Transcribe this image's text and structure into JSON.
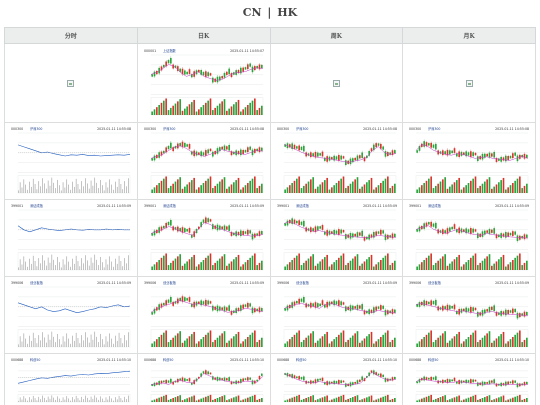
{
  "header": {
    "cn_label": "CN",
    "separator": "|",
    "hk_label": "HK"
  },
  "table": {
    "columns": [
      "分时",
      "日K",
      "周K",
      "月K"
    ]
  },
  "rows": [
    {
      "intraday": {
        "code": "",
        "name": "",
        "broken": true
      },
      "daily": {
        "code": "000001",
        "name": "上证指数",
        "stamp": "2025-01-11 14:55:07",
        "broken": false,
        "trend": [
          0.55,
          0.6,
          0.7,
          0.8,
          0.75,
          0.6,
          0.5,
          0.55,
          0.62,
          0.5,
          0.45,
          0.4,
          0.42,
          0.5,
          0.58,
          0.6,
          0.62,
          0.68,
          0.72,
          0.7
        ]
      },
      "weekly": {
        "broken": true
      },
      "monthly": {
        "broken": true
      }
    },
    {
      "intraday": {
        "code": "000300",
        "name": "沪深300",
        "stamp": "2025-01-11 14:55:08",
        "broken": false,
        "trend": [
          0.7,
          0.65,
          0.6,
          0.55,
          0.5,
          0.52,
          0.48,
          0.45,
          0.42,
          0.45,
          0.44,
          0.46,
          0.43,
          0.44,
          0.42,
          0.43,
          0.44,
          0.45,
          0.44,
          0.46
        ]
      },
      "daily": {
        "code": "000300",
        "name": "沪深300",
        "stamp": "2025-01-11 14:55:08",
        "broken": false,
        "trend": [
          0.4,
          0.45,
          0.5,
          0.6,
          0.68,
          0.72,
          0.65,
          0.55,
          0.5,
          0.45,
          0.5,
          0.55,
          0.62,
          0.58,
          0.55,
          0.52,
          0.5,
          0.55,
          0.6,
          0.58
        ]
      },
      "weekly": {
        "code": "000300",
        "name": "沪深300",
        "stamp": "2025-01-11 14:55:08",
        "broken": false,
        "trend": [
          0.75,
          0.7,
          0.62,
          0.55,
          0.5,
          0.45,
          0.42,
          0.4,
          0.38,
          0.35,
          0.32,
          0.3,
          0.33,
          0.36,
          0.42,
          0.6,
          0.7,
          0.55,
          0.5,
          0.52
        ]
      },
      "monthly": {
        "code": "000300",
        "name": "沪深300",
        "stamp": "2025-01-11 14:55:08",
        "broken": false,
        "trend": [
          0.6,
          0.75,
          0.7,
          0.6,
          0.55,
          0.5,
          0.48,
          0.52,
          0.5,
          0.45,
          0.4,
          0.42,
          0.44,
          0.4,
          0.38,
          0.36,
          0.35,
          0.4,
          0.45,
          0.4
        ]
      }
    },
    {
      "intraday": {
        "code": "399001",
        "name": "深证成指",
        "stamp": "2025-01-11 14:55:09",
        "broken": false,
        "trend": [
          0.6,
          0.5,
          0.45,
          0.5,
          0.55,
          0.52,
          0.5,
          0.48,
          0.5,
          0.52,
          0.5,
          0.49,
          0.51,
          0.5,
          0.5,
          0.52,
          0.5,
          0.51,
          0.5,
          0.5
        ]
      },
      "daily": {
        "code": "399001",
        "name": "深证成指",
        "stamp": "2025-01-11 14:55:09",
        "broken": false,
        "trend": [
          0.45,
          0.5,
          0.55,
          0.62,
          0.58,
          0.5,
          0.45,
          0.4,
          0.55,
          0.72,
          0.68,
          0.6,
          0.55,
          0.5,
          0.45,
          0.42,
          0.4,
          0.38,
          0.4,
          0.42
        ]
      },
      "weekly": {
        "code": "399001",
        "name": "深证成指",
        "stamp": "2025-01-11 14:55:09",
        "broken": false,
        "trend": [
          0.7,
          0.75,
          0.68,
          0.6,
          0.55,
          0.5,
          0.52,
          0.48,
          0.45,
          0.42,
          0.4,
          0.38,
          0.36,
          0.35,
          0.34,
          0.36,
          0.4,
          0.38,
          0.36,
          0.35
        ]
      },
      "monthly": {
        "code": "399001",
        "name": "深证成指",
        "stamp": "2025-01-11 14:55:09",
        "broken": false,
        "trend": [
          0.55,
          0.6,
          0.65,
          0.55,
          0.5,
          0.45,
          0.5,
          0.55,
          0.5,
          0.45,
          0.42,
          0.4,
          0.45,
          0.42,
          0.4,
          0.38,
          0.36,
          0.35,
          0.34,
          0.33
        ]
      }
    },
    {
      "intraday": {
        "code": "399006",
        "name": "创业板指",
        "stamp": "2025-01-11 14:55:09",
        "broken": false,
        "trend": [
          0.6,
          0.55,
          0.5,
          0.45,
          0.5,
          0.42,
          0.38,
          0.4,
          0.45,
          0.4,
          0.35,
          0.38,
          0.42,
          0.45,
          0.5,
          0.48,
          0.52,
          0.55,
          0.5,
          0.52
        ]
      },
      "daily": {
        "code": "399006",
        "name": "创业板指",
        "stamp": "2025-01-11 14:55:09",
        "broken": false,
        "trend": [
          0.4,
          0.5,
          0.55,
          0.6,
          0.65,
          0.7,
          0.65,
          0.6,
          0.62,
          0.58,
          0.55,
          0.5,
          0.45,
          0.4,
          0.42,
          0.45,
          0.5,
          0.48,
          0.45,
          0.42
        ]
      },
      "weekly": {
        "code": "399006",
        "name": "创业板指",
        "stamp": "2025-01-11 14:55:09",
        "broken": false,
        "trend": [
          0.5,
          0.55,
          0.6,
          0.62,
          0.58,
          0.55,
          0.5,
          0.6,
          0.62,
          0.58,
          0.52,
          0.5,
          0.48,
          0.45,
          0.42,
          0.4,
          0.45,
          0.42,
          0.4,
          0.38
        ]
      },
      "monthly": {
        "code": "399006",
        "name": "创业板指",
        "stamp": "2025-01-11 14:55:09",
        "broken": false,
        "trend": [
          0.6,
          0.62,
          0.58,
          0.55,
          0.5,
          0.48,
          0.45,
          0.42,
          0.44,
          0.4,
          0.38,
          0.36,
          0.4,
          0.42,
          0.38,
          0.36,
          0.35,
          0.34,
          0.33,
          0.32
        ]
      }
    },
    {
      "intraday": {
        "code": "000688",
        "name": "科创50",
        "stamp": "2025-01-11 14:55:10",
        "broken": false,
        "trend": [
          0.3,
          0.35,
          0.4,
          0.45,
          0.5,
          0.48,
          0.52,
          0.55,
          0.58,
          0.56,
          0.6,
          0.62,
          0.6,
          0.64,
          0.66,
          0.65,
          0.68,
          0.7,
          0.72,
          0.74
        ]
      },
      "daily": {
        "code": "000688",
        "name": "科创50",
        "stamp": "2025-01-11 14:55:10",
        "broken": false,
        "trend": [
          0.3,
          0.32,
          0.35,
          0.3,
          0.4,
          0.45,
          0.38,
          0.35,
          0.5,
          0.7,
          0.6,
          0.5,
          0.45,
          0.4,
          0.38,
          0.36,
          0.42,
          0.4,
          0.38,
          0.6
        ]
      },
      "weekly": {
        "code": "000688",
        "name": "科创50",
        "stamp": "2025-01-11 14:55:10",
        "broken": false,
        "trend": [
          0.7,
          0.6,
          0.5,
          0.42,
          0.38,
          0.35,
          0.4,
          0.36,
          0.34,
          0.32,
          0.3,
          0.28,
          0.3,
          0.35,
          0.55,
          0.75,
          0.6,
          0.5,
          0.45,
          0.48
        ]
      },
      "monthly": {
        "code": "000688",
        "name": "科创50",
        "stamp": "2025-01-11 14:55:10",
        "broken": false,
        "trend": [
          0.4,
          0.5,
          0.45,
          0.42,
          0.4,
          0.38,
          0.36,
          0.4,
          0.38,
          0.35,
          0.33,
          0.32,
          0.3,
          0.32,
          0.3,
          0.28,
          0.3,
          0.29,
          0.28,
          0.3
        ]
      }
    }
  ],
  "colors": {
    "up": "#d9342b",
    "down": "#2aa33a",
    "price_line": "#1f5bbf",
    "ma_line": "#c238c8",
    "grid": "#e1e4e4",
    "header_bg": "#eceeee"
  }
}
